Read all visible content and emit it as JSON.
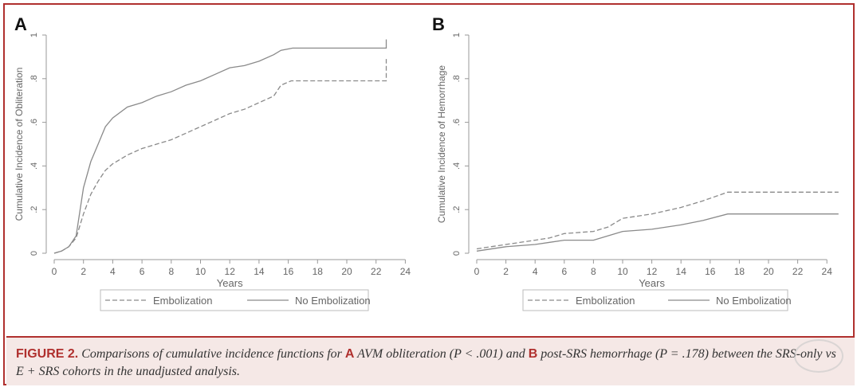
{
  "chart_data": [
    {
      "type": "line",
      "panel_label": "A",
      "ylabel": "Cumulative Incidence of Obliteration",
      "xlabel": "Years",
      "x_ticks": [
        "0",
        "2",
        "4",
        "6",
        "8",
        "10",
        "12",
        "14",
        "16",
        "18",
        "20",
        "22",
        "24"
      ],
      "y_ticks": [
        "0",
        ".2",
        ".4",
        ".6",
        ".8",
        "1"
      ],
      "xlim": [
        0,
        24
      ],
      "ylim": [
        0,
        1
      ],
      "legend": [
        "Embolization",
        "No Embolization"
      ],
      "series": [
        {
          "name": "Embolization",
          "style": "dashed",
          "points": [
            [
              0,
              0
            ],
            [
              0.5,
              0.01
            ],
            [
              1,
              0.03
            ],
            [
              1.5,
              0.07
            ],
            [
              2,
              0.18
            ],
            [
              2.5,
              0.27
            ],
            [
              3,
              0.33
            ],
            [
              3.5,
              0.38
            ],
            [
              4,
              0.41
            ],
            [
              5,
              0.45
            ],
            [
              6,
              0.48
            ],
            [
              7,
              0.5
            ],
            [
              8,
              0.52
            ],
            [
              9,
              0.55
            ],
            [
              10,
              0.58
            ],
            [
              11,
              0.61
            ],
            [
              12,
              0.64
            ],
            [
              13,
              0.66
            ],
            [
              14,
              0.69
            ],
            [
              15,
              0.72
            ],
            [
              15.5,
              0.77
            ],
            [
              16.2,
              0.79
            ],
            [
              22.7,
              0.79
            ],
            [
              22.7,
              0.89
            ]
          ]
        },
        {
          "name": "No Embolization",
          "style": "solid",
          "points": [
            [
              0,
              0
            ],
            [
              0.5,
              0.01
            ],
            [
              1,
              0.03
            ],
            [
              1.5,
              0.08
            ],
            [
              2,
              0.3
            ],
            [
              2.5,
              0.42
            ],
            [
              3,
              0.5
            ],
            [
              3.5,
              0.58
            ],
            [
              4,
              0.62
            ],
            [
              5,
              0.67
            ],
            [
              6,
              0.69
            ],
            [
              7,
              0.72
            ],
            [
              8,
              0.74
            ],
            [
              9,
              0.77
            ],
            [
              10,
              0.79
            ],
            [
              11,
              0.82
            ],
            [
              12,
              0.85
            ],
            [
              13,
              0.86
            ],
            [
              14,
              0.88
            ],
            [
              15,
              0.91
            ],
            [
              15.5,
              0.93
            ],
            [
              16.3,
              0.94
            ],
            [
              22.7,
              0.94
            ],
            [
              22.7,
              0.98
            ]
          ]
        }
      ]
    },
    {
      "type": "line",
      "panel_label": "B",
      "ylabel": "Cumulative Incidence of Hemorrhage",
      "xlabel": "Years",
      "x_ticks": [
        "0",
        "2",
        "4",
        "6",
        "8",
        "10",
        "12",
        "14",
        "16",
        "18",
        "20",
        "22",
        "24"
      ],
      "y_ticks": [
        "0",
        ".2",
        ".4",
        ".6",
        ".8",
        "1"
      ],
      "xlim": [
        0,
        24
      ],
      "ylim": [
        0,
        1
      ],
      "legend": [
        "Embolization",
        "No Embolization"
      ],
      "series": [
        {
          "name": "Embolization",
          "style": "dashed",
          "points": [
            [
              0,
              0.02
            ],
            [
              2,
              0.04
            ],
            [
              4,
              0.06
            ],
            [
              5,
              0.07
            ],
            [
              6,
              0.09
            ],
            [
              8,
              0.1
            ],
            [
              9,
              0.12
            ],
            [
              10,
              0.16
            ],
            [
              12,
              0.18
            ],
            [
              14,
              0.21
            ],
            [
              15.5,
              0.24
            ],
            [
              17.2,
              0.28
            ],
            [
              24.8,
              0.28
            ]
          ]
        },
        {
          "name": "No Embolization",
          "style": "solid",
          "points": [
            [
              0,
              0.01
            ],
            [
              2,
              0.03
            ],
            [
              4,
              0.04
            ],
            [
              5,
              0.05
            ],
            [
              6,
              0.06
            ],
            [
              8,
              0.06
            ],
            [
              9,
              0.08
            ],
            [
              10,
              0.1
            ],
            [
              12,
              0.11
            ],
            [
              14,
              0.13
            ],
            [
              15.5,
              0.15
            ],
            [
              17.2,
              0.18
            ],
            [
              24.8,
              0.18
            ]
          ]
        }
      ]
    }
  ],
  "caption": {
    "label": "FIGURE 2.",
    "text_1": " Comparisons of cumulative incidence functions for ",
    "letter_a": "A",
    "text_2": " AVM obliteration (P < .001) and ",
    "letter_b": "B",
    "text_3": " post-SRS hemorrhage (P = .178) between the SRS-only vs E + SRS cohorts in the unadjusted analysis."
  },
  "colors": {
    "accent": "#b0302e",
    "axis": "#999999",
    "text": "#666666",
    "line": "#8a8a8a"
  }
}
